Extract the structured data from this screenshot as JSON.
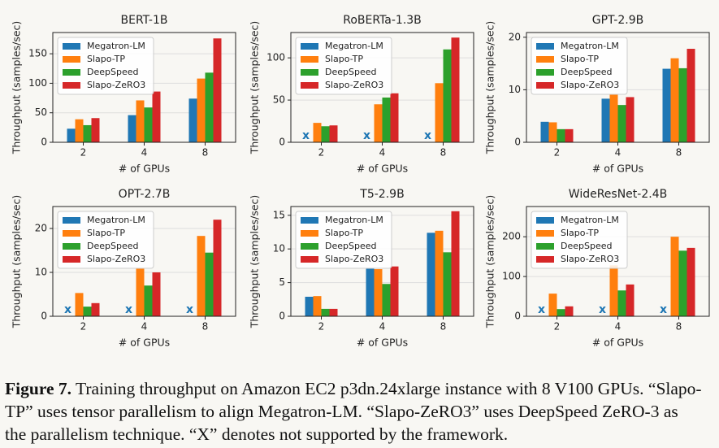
{
  "chart_data": [
    {
      "type": "bar",
      "title": "BERT-1B",
      "xlabel": "# of GPUs",
      "ylabel": "Throughput (samples/sec)",
      "categories": [
        "2",
        "4",
        "8"
      ],
      "series": [
        {
          "name": "Megatron-LM",
          "color": "#1f77b4",
          "values": [
            23,
            46,
            74
          ]
        },
        {
          "name": "Slapo-TP",
          "color": "#ff7f0e",
          "values": [
            39,
            71,
            108
          ]
        },
        {
          "name": "DeepSpeed",
          "color": "#2ca02c",
          "values": [
            29,
            59,
            118
          ]
        },
        {
          "name": "Slapo-ZeRO3",
          "color": "#d62728",
          "values": [
            41,
            86,
            176
          ]
        }
      ],
      "ylim": [
        0,
        186
      ],
      "yticks": [
        0,
        50,
        100,
        150
      ],
      "grid": true,
      "legend": "upper-left"
    },
    {
      "type": "bar",
      "title": "RoBERTa-1.3B",
      "xlabel": "# of GPUs",
      "ylabel": "Throughput (samples/sec)",
      "categories": [
        "2",
        "4",
        "8"
      ],
      "series": [
        {
          "name": "Megatron-LM",
          "color": "#1f77b4",
          "values": [
            null,
            null,
            null
          ],
          "value_labels": [
            "x",
            "x",
            "x"
          ]
        },
        {
          "name": "Slapo-TP",
          "color": "#ff7f0e",
          "values": [
            23,
            45,
            70
          ]
        },
        {
          "name": "DeepSpeed",
          "color": "#2ca02c",
          "values": [
            19,
            53,
            110
          ]
        },
        {
          "name": "Slapo-ZeRO3",
          "color": "#d62728",
          "values": [
            20,
            58,
            124
          ]
        }
      ],
      "ylim": [
        0,
        130
      ],
      "yticks": [
        0,
        50,
        100
      ],
      "grid": true,
      "legend": "upper-left"
    },
    {
      "type": "bar",
      "title": "GPT-2.9B",
      "xlabel": "# of GPUs",
      "ylabel": "Throughput (samples/sec)",
      "categories": [
        "2",
        "4",
        "8"
      ],
      "series": [
        {
          "name": "Megatron-LM",
          "color": "#1f77b4",
          "values": [
            3.9,
            8.3,
            14
          ]
        },
        {
          "name": "Slapo-TP",
          "color": "#ff7f0e",
          "values": [
            3.8,
            9.2,
            16
          ]
        },
        {
          "name": "DeepSpeed",
          "color": "#2ca02c",
          "values": [
            2.5,
            7.1,
            14.1
          ]
        },
        {
          "name": "Slapo-ZeRO3",
          "color": "#d62728",
          "values": [
            2.5,
            8.6,
            17.8
          ]
        }
      ],
      "ylim": [
        0,
        20.9
      ],
      "yticks": [
        0,
        10,
        20
      ],
      "grid": true,
      "legend": "upper-left"
    },
    {
      "type": "bar",
      "title": "OPT-2.7B",
      "xlabel": "# of GPUs",
      "ylabel": "Throughput (samples/sec)",
      "categories": [
        "2",
        "4",
        "8"
      ],
      "series": [
        {
          "name": "Megatron-LM",
          "color": "#1f77b4",
          "values": [
            null,
            null,
            null
          ],
          "value_labels": [
            "x",
            "x",
            "x"
          ]
        },
        {
          "name": "Slapo-TP",
          "color": "#ff7f0e",
          "values": [
            5.3,
            11,
            18.3
          ]
        },
        {
          "name": "DeepSpeed",
          "color": "#2ca02c",
          "values": [
            2.2,
            7,
            14.5
          ]
        },
        {
          "name": "Slapo-ZeRO3",
          "color": "#d62728",
          "values": [
            3,
            10,
            22
          ]
        }
      ],
      "ylim": [
        0,
        25
      ],
      "yticks": [
        0,
        10,
        20
      ],
      "grid": true,
      "legend": "upper-left"
    },
    {
      "type": "bar",
      "title": "T5-2.9B",
      "xlabel": "# of GPUs",
      "ylabel": "Throughput (samples/sec)",
      "categories": [
        "2",
        "4",
        "8"
      ],
      "series": [
        {
          "name": "Megatron-LM",
          "color": "#1f77b4",
          "values": [
            2.9,
            7.1,
            12.4
          ]
        },
        {
          "name": "Slapo-TP",
          "color": "#ff7f0e",
          "values": [
            3,
            7,
            12.7
          ]
        },
        {
          "name": "DeepSpeed",
          "color": "#2ca02c",
          "values": [
            1.1,
            4.8,
            9.5
          ]
        },
        {
          "name": "Slapo-ZeRO3",
          "color": "#d62728",
          "values": [
            1.1,
            7.4,
            15.6
          ]
        }
      ],
      "ylim": [
        0,
        16.3
      ],
      "yticks": [
        0,
        5,
        10,
        15
      ],
      "grid": true,
      "legend": "upper-left"
    },
    {
      "type": "bar",
      "title": "WideResNet-2.4B",
      "xlabel": "# of GPUs",
      "ylabel": "Throughput (samples/sec)",
      "categories": [
        "2",
        "4",
        "8"
      ],
      "series": [
        {
          "name": "Megatron-LM",
          "color": "#1f77b4",
          "values": [
            null,
            null,
            null
          ],
          "value_labels": [
            "x",
            "x",
            "x"
          ]
        },
        {
          "name": "Slapo-TP",
          "color": "#ff7f0e",
          "values": [
            57,
            128,
            200
          ]
        },
        {
          "name": "DeepSpeed",
          "color": "#2ca02c",
          "values": [
            18,
            65,
            165
          ]
        },
        {
          "name": "Slapo-ZeRO3",
          "color": "#d62728",
          "values": [
            25,
            80,
            172
          ]
        }
      ],
      "ylim": [
        0,
        276
      ],
      "yticks": [
        0,
        100,
        200
      ],
      "grid": true,
      "legend": "upper-left"
    }
  ],
  "caption": {
    "label": "Figure 7.",
    "text": "Training throughput on Amazon EC2 p3dn.24xlarge instance with 8 V100 GPUs. “Slapo-TP” uses tensor parallelism to align Megatron-LM. “Slapo-ZeRO3” uses DeepSpeed ZeRO-3 as the parallelism technique. “X” denotes not supported by the framework."
  }
}
